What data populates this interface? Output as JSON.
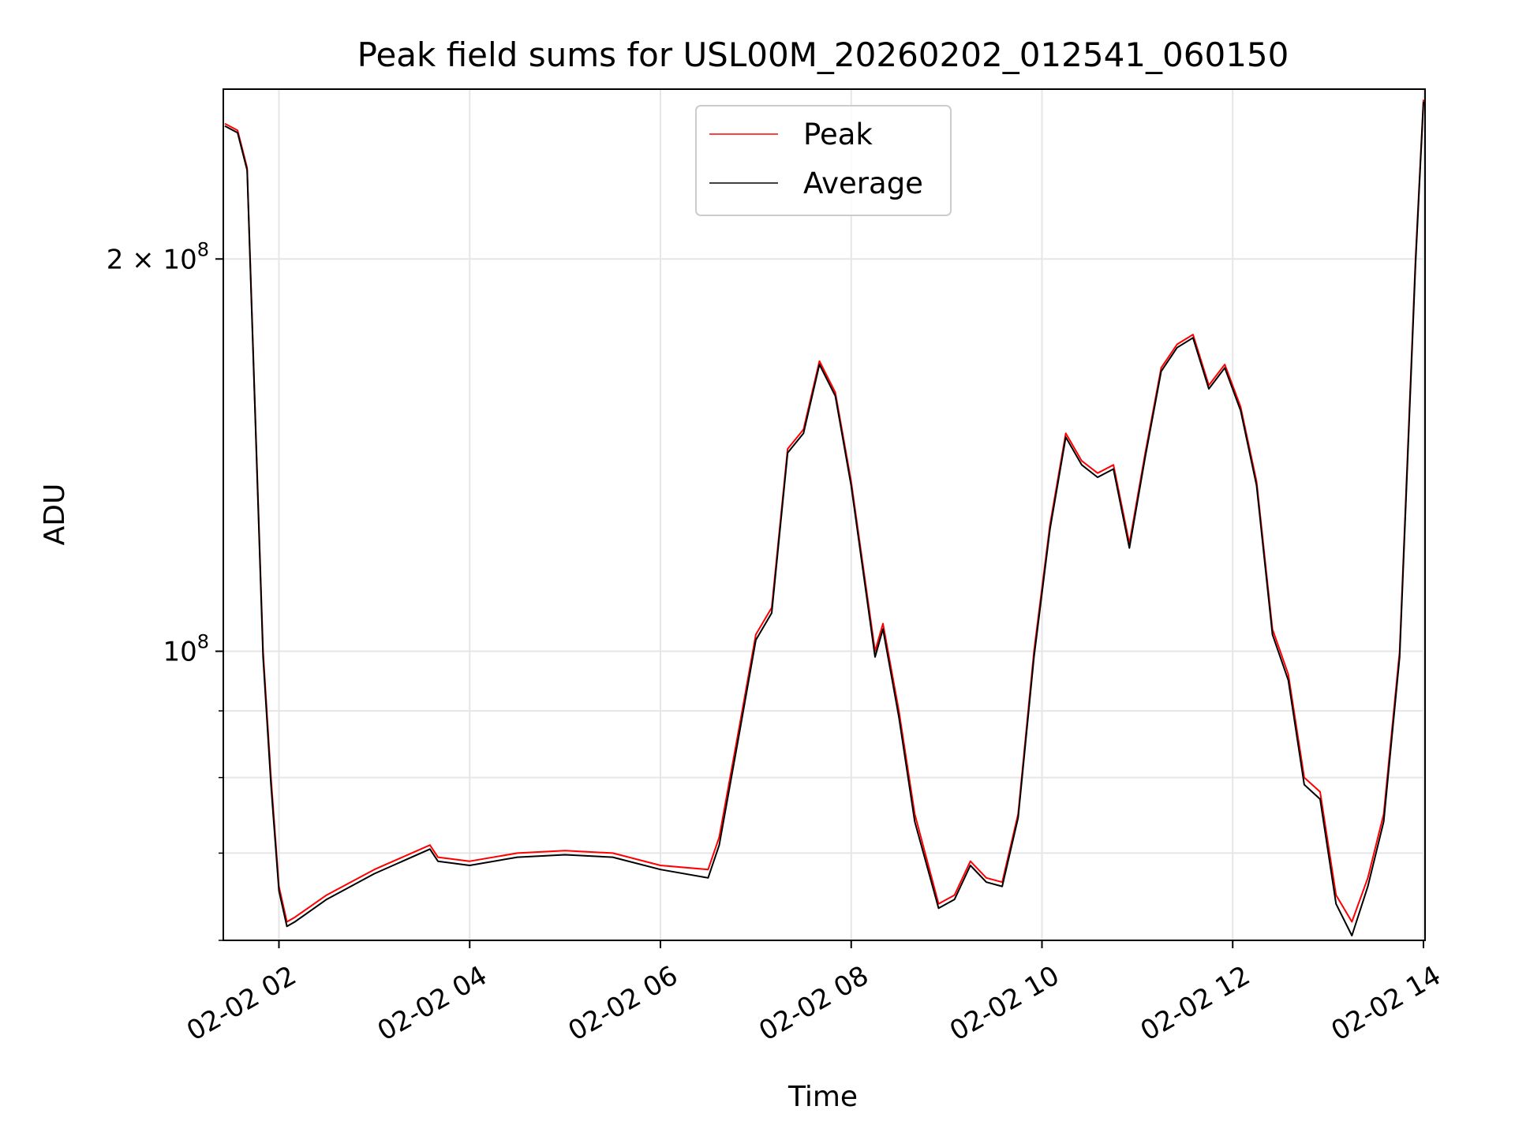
{
  "chart_data": {
    "type": "line",
    "title": "Peak field sums for USL00M_20260202_012541_060150",
    "xlabel": "Time",
    "ylabel": "ADU",
    "y_scale": "log",
    "xlim": [
      "2026-02-02 01:25",
      "2026-02-02 14:01"
    ],
    "ylim": [
      60000000,
      270000000
    ],
    "grid": true,
    "legend": "upper-center",
    "x_ticks": [
      {
        "value": "2026-02-02 02:00",
        "label": "02-02 02"
      },
      {
        "value": "2026-02-02 04:00",
        "label": "02-02 04"
      },
      {
        "value": "2026-02-02 06:00",
        "label": "02-02 06"
      },
      {
        "value": "2026-02-02 08:00",
        "label": "02-02 08"
      },
      {
        "value": "2026-02-02 10:00",
        "label": "02-02 10"
      },
      {
        "value": "2026-02-02 12:00",
        "label": "02-02 12"
      },
      {
        "value": "2026-02-02 14:00",
        "label": "02-02 14"
      }
    ],
    "y_ticks": [
      {
        "value": 100000000,
        "mantissa": "",
        "exponent": "8"
      },
      {
        "value": 200000000,
        "mantissa": "2",
        "exponent": "8"
      }
    ],
    "y_minor_ticks": [
      60000000,
      70000000,
      80000000,
      90000000
    ],
    "series": [
      {
        "name": "Peak",
        "color": "#ff0000",
        "x": [
          "2026-02-02 01:26",
          "2026-02-02 01:34",
          "2026-02-02 01:40",
          "2026-02-02 01:50",
          "2026-02-02 01:55",
          "2026-02-02 02:00",
          "2026-02-02 02:05",
          "2026-02-02 02:10",
          "2026-02-02 02:30",
          "2026-02-02 03:00",
          "2026-02-02 03:35",
          "2026-02-02 03:40",
          "2026-02-02 04:00",
          "2026-02-02 04:30",
          "2026-02-02 05:00",
          "2026-02-02 05:30",
          "2026-02-02 06:00",
          "2026-02-02 06:30",
          "2026-02-02 06:37",
          "2026-02-02 06:50",
          "2026-02-02 07:00",
          "2026-02-02 07:10",
          "2026-02-02 07:20",
          "2026-02-02 07:30",
          "2026-02-02 07:40",
          "2026-02-02 07:50",
          "2026-02-02 08:00",
          "2026-02-02 08:15",
          "2026-02-02 08:20",
          "2026-02-02 08:30",
          "2026-02-02 08:40",
          "2026-02-02 08:55",
          "2026-02-02 09:05",
          "2026-02-02 09:15",
          "2026-02-02 09:25",
          "2026-02-02 09:35",
          "2026-02-02 09:45",
          "2026-02-02 09:55",
          "2026-02-02 10:05",
          "2026-02-02 10:15",
          "2026-02-02 10:25",
          "2026-02-02 10:35",
          "2026-02-02 10:45",
          "2026-02-02 10:55",
          "2026-02-02 11:05",
          "2026-02-02 11:15",
          "2026-02-02 11:25",
          "2026-02-02 11:35",
          "2026-02-02 11:45",
          "2026-02-02 11:55",
          "2026-02-02 12:05",
          "2026-02-02 12:15",
          "2026-02-02 12:25",
          "2026-02-02 12:35",
          "2026-02-02 12:45",
          "2026-02-02 12:55",
          "2026-02-02 13:05",
          "2026-02-02 13:15",
          "2026-02-02 13:25",
          "2026-02-02 13:35",
          "2026-02-02 13:45",
          "2026-02-02 13:55",
          "2026-02-02 14:00"
        ],
        "y": [
          254000000,
          251000000,
          235000000,
          100000000,
          80000000,
          66000000,
          62000000,
          62500000,
          65000000,
          68000000,
          71000000,
          69500000,
          69000000,
          70000000,
          70300000,
          70000000,
          68500000,
          68000000,
          72000000,
          88000000,
          103000000,
          108000000,
          143000000,
          148000000,
          167000000,
          158000000,
          135000000,
          100000000,
          105000000,
          90000000,
          75000000,
          64000000,
          65000000,
          69000000,
          67000000,
          66500000,
          75000000,
          100000000,
          125000000,
          147000000,
          140000000,
          137000000,
          139000000,
          121000000,
          142000000,
          165000000,
          172000000,
          175000000,
          160000000,
          166000000,
          154000000,
          135000000,
          104000000,
          96000000,
          80000000,
          78000000,
          65000000,
          62000000,
          67000000,
          75000000,
          100000000,
          200000000,
          265000000
        ]
      },
      {
        "name": "Average",
        "color": "#000000",
        "x": [
          "2026-02-02 01:26",
          "2026-02-02 01:34",
          "2026-02-02 01:40",
          "2026-02-02 01:50",
          "2026-02-02 01:55",
          "2026-02-02 02:00",
          "2026-02-02 02:05",
          "2026-02-02 02:10",
          "2026-02-02 02:30",
          "2026-02-02 03:00",
          "2026-02-02 03:35",
          "2026-02-02 03:40",
          "2026-02-02 04:00",
          "2026-02-02 04:30",
          "2026-02-02 05:00",
          "2026-02-02 05:30",
          "2026-02-02 06:00",
          "2026-02-02 06:30",
          "2026-02-02 06:37",
          "2026-02-02 06:50",
          "2026-02-02 07:00",
          "2026-02-02 07:10",
          "2026-02-02 07:20",
          "2026-02-02 07:30",
          "2026-02-02 07:40",
          "2026-02-02 07:50",
          "2026-02-02 08:00",
          "2026-02-02 08:15",
          "2026-02-02 08:20",
          "2026-02-02 08:30",
          "2026-02-02 08:40",
          "2026-02-02 08:55",
          "2026-02-02 09:05",
          "2026-02-02 09:15",
          "2026-02-02 09:25",
          "2026-02-02 09:35",
          "2026-02-02 09:45",
          "2026-02-02 09:55",
          "2026-02-02 10:05",
          "2026-02-02 10:15",
          "2026-02-02 10:25",
          "2026-02-02 10:35",
          "2026-02-02 10:45",
          "2026-02-02 10:55",
          "2026-02-02 11:05",
          "2026-02-02 11:15",
          "2026-02-02 11:25",
          "2026-02-02 11:35",
          "2026-02-02 11:45",
          "2026-02-02 11:55",
          "2026-02-02 12:05",
          "2026-02-02 12:15",
          "2026-02-02 12:25",
          "2026-02-02 12:35",
          "2026-02-02 12:45",
          "2026-02-02 12:55",
          "2026-02-02 13:05",
          "2026-02-02 13:15",
          "2026-02-02 13:25",
          "2026-02-02 13:35",
          "2026-02-02 13:45",
          "2026-02-02 13:55",
          "2026-02-02 14:00"
        ],
        "y": [
          253000000,
          250000000,
          234000000,
          99000000,
          79000000,
          65500000,
          61500000,
          62000000,
          64500000,
          67500000,
          70500000,
          69000000,
          68500000,
          69500000,
          69800000,
          69500000,
          68000000,
          67000000,
          71000000,
          87000000,
          102000000,
          107000000,
          142000000,
          147000000,
          166000000,
          157000000,
          134000000,
          99000000,
          104000000,
          89000000,
          74000000,
          63500000,
          64500000,
          68500000,
          66500000,
          66000000,
          74500000,
          99000000,
          124000000,
          146000000,
          139000000,
          136000000,
          138000000,
          120000000,
          141000000,
          164000000,
          171000000,
          174000000,
          159000000,
          165000000,
          153000000,
          134000000,
          103000000,
          95000000,
          79000000,
          77000000,
          64000000,
          60500000,
          66000000,
          74000000,
          99000000,
          198000000,
          264000000
        ]
      }
    ]
  }
}
